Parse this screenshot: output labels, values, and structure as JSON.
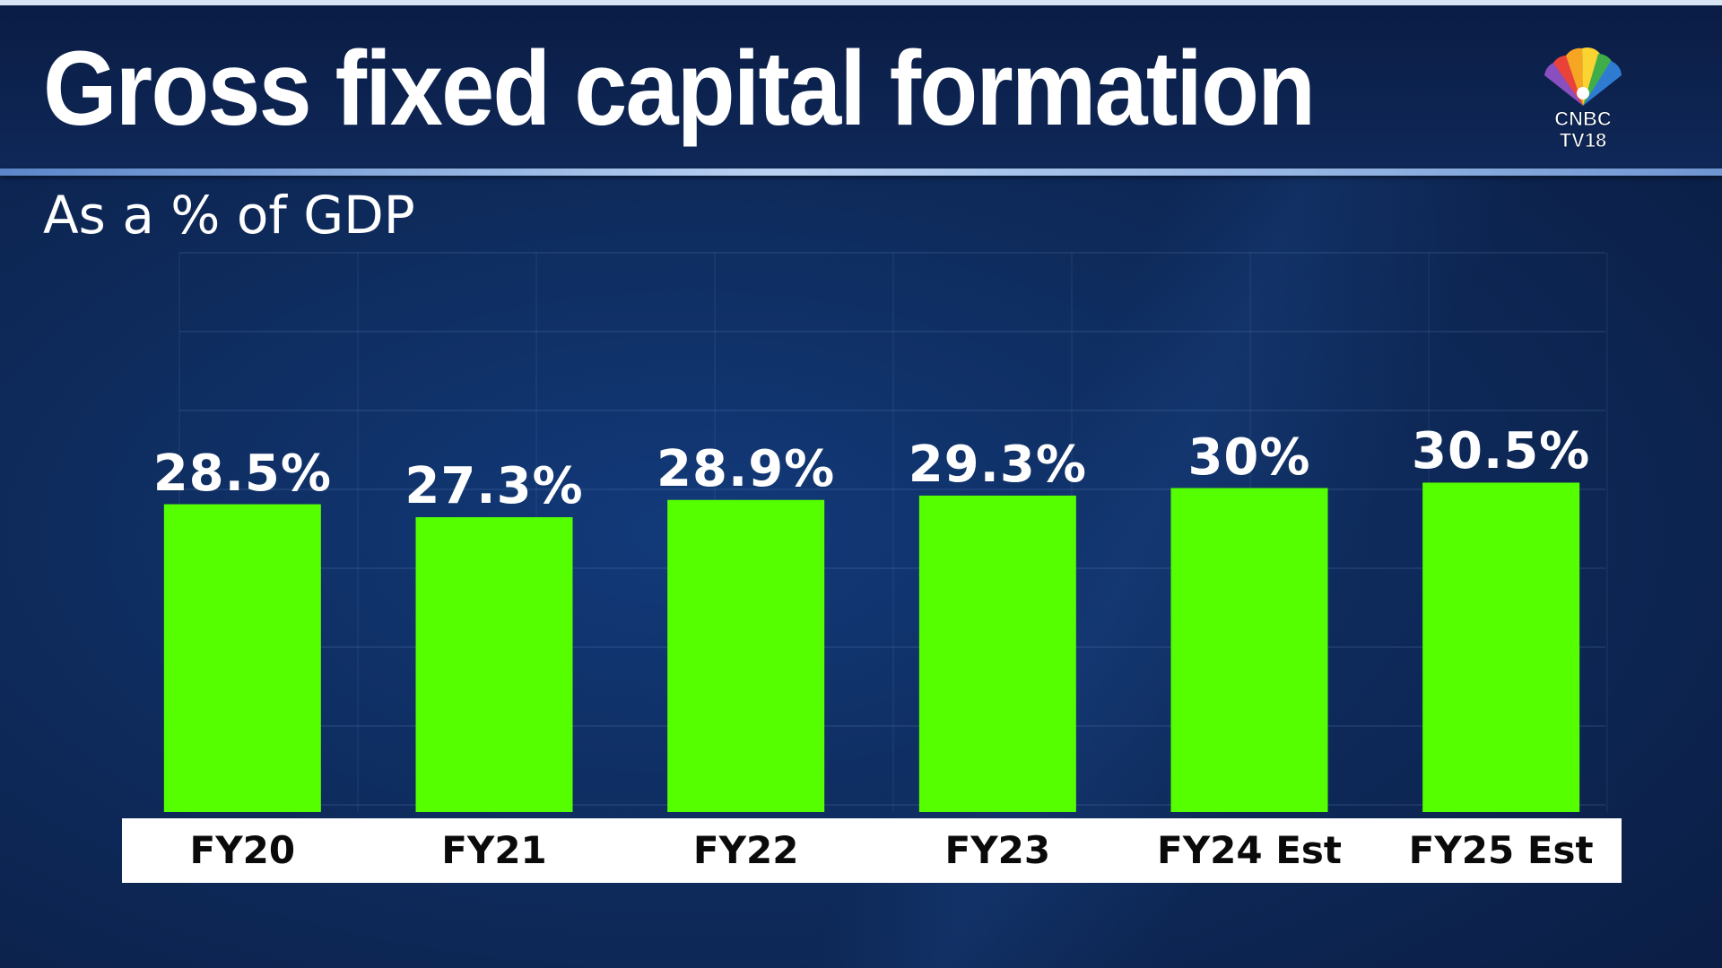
{
  "header": {
    "title": "Gross fixed capital formation",
    "subtitle": "As a % of GDP"
  },
  "logo": {
    "icon": "peacock-logo-icon",
    "line1": "CNBC",
    "line2": "TV18"
  },
  "colors": {
    "background": "#0b1d44",
    "bar": "#55ff00",
    "axis_strip": "#ffffff",
    "label_text": "#ffffff",
    "tick_text": "#0a0a0a"
  },
  "chart_data": {
    "type": "bar",
    "title": "Gross fixed capital formation",
    "subtitle": "As a % of GDP",
    "categories": [
      "FY20",
      "FY21",
      "FY22",
      "FY23",
      "FY24 Est",
      "FY25 Est"
    ],
    "values": [
      28.5,
      27.3,
      28.9,
      29.3,
      30,
      30.5
    ],
    "data_labels": [
      "28.5%",
      "27.3%",
      "28.9%",
      "29.3%",
      "30%",
      "30.5%"
    ],
    "xlabel": "",
    "ylabel": "",
    "ylim": [
      0,
      35
    ],
    "grid": true,
    "legend": "none"
  }
}
